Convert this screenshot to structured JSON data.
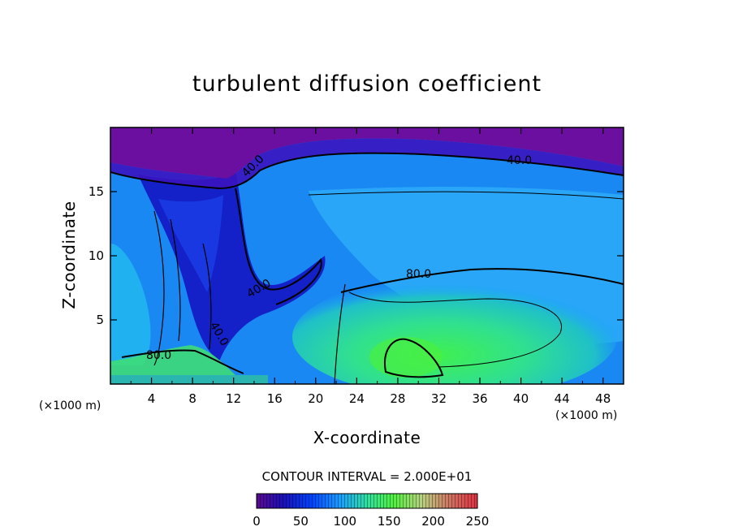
{
  "title": "turbulent diffusion coefficient",
  "chart_data": {
    "type": "heatmap",
    "title": "turbulent diffusion coefficient",
    "xlabel": "X-coordinate",
    "ylabel": "Z-coordinate",
    "x_unit": "(×1000 m)",
    "y_unit": "(×1000 m)",
    "xlim": [
      0,
      50
    ],
    "ylim": [
      0,
      20
    ],
    "x_ticks": [
      "4",
      "8",
      "12",
      "16",
      "20",
      "24",
      "28",
      "32",
      "36",
      "40",
      "44",
      "48"
    ],
    "y_ticks": [
      "5",
      "10",
      "15"
    ],
    "contour_interval_text": "CONTOUR INTERVAL = 2.000E+01",
    "contour_labels": [
      "40.0",
      "40.0",
      "40.0",
      "40.0",
      "80.0",
      "80.0"
    ],
    "colorbar": {
      "min": 0,
      "max": 250,
      "ticks": [
        "0",
        "50",
        "100",
        "150",
        "200",
        "250"
      ],
      "colors": [
        "#6b0fa0",
        "#1a10b8",
        "#0044ff",
        "#1aa0ff",
        "#30e0a0",
        "#44f040",
        "#c8c870",
        "#d07060",
        "#e03040"
      ]
    },
    "regions": [
      {
        "desc": "top layer",
        "value": 10
      },
      {
        "desc": "left updraft core",
        "value": 35
      },
      {
        "desc": "interior background",
        "value": 65
      },
      {
        "desc": "lower-right pool",
        "value": 110
      },
      {
        "desc": "pool core",
        "value": 140
      }
    ]
  }
}
